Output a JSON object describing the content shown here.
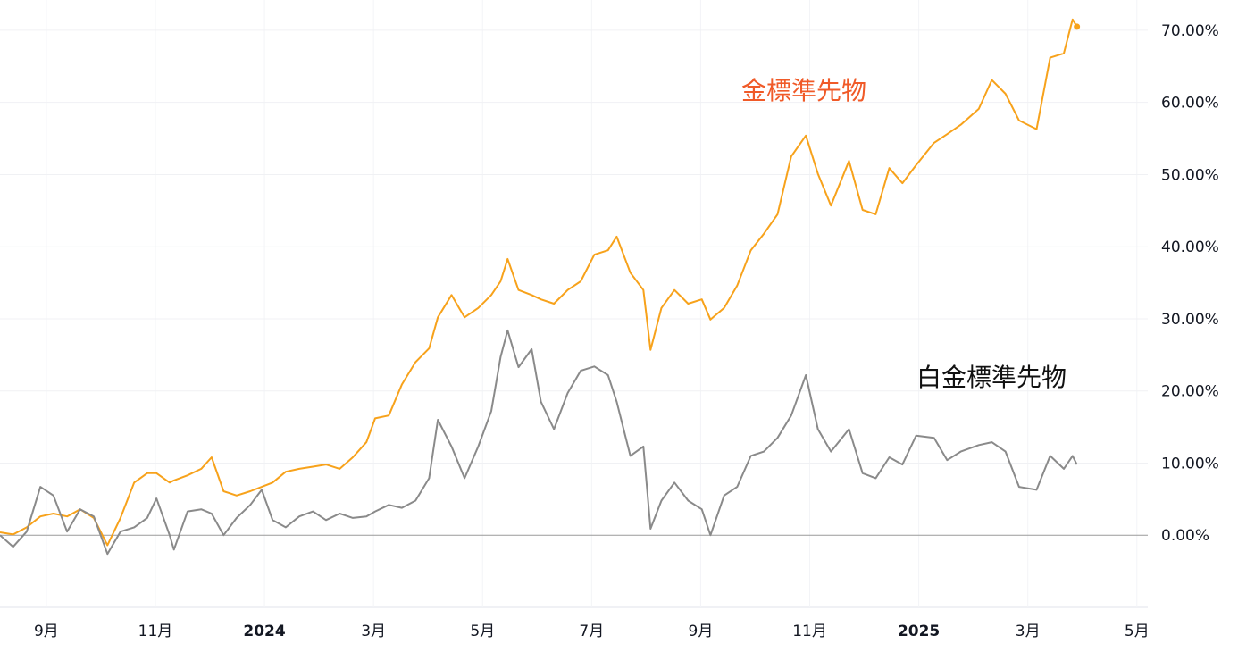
{
  "chart_data": {
    "type": "line",
    "x": [
      8.15,
      8.39,
      8.64,
      8.89,
      9.13,
      9.38,
      9.62,
      9.87,
      10.12,
      10.36,
      10.61,
      10.85,
      11.02,
      11.26,
      11.34,
      11.59,
      11.84,
      12.03,
      12.25,
      12.49,
      12.74,
      12.95,
      13.15,
      13.39,
      13.64,
      13.89,
      14.13,
      14.38,
      14.62,
      14.87,
      15.03,
      15.28,
      15.52,
      15.77,
      16.02,
      16.18,
      16.43,
      16.67,
      16.92,
      17.16,
      17.33,
      17.46,
      17.66,
      17.9,
      18.07,
      18.31,
      18.56,
      18.8,
      19.05,
      19.3,
      19.46,
      19.71,
      19.95,
      20.08,
      20.28,
      20.52,
      20.77,
      21.02,
      21.18,
      21.43,
      21.67,
      21.92,
      22.16,
      22.41,
      22.66,
      22.93,
      23.15,
      23.39,
      23.72,
      23.97,
      24.21,
      24.46,
      24.7,
      24.95,
      25.28,
      25.52,
      25.77,
      26.1,
      26.34,
      26.59,
      26.84,
      27.16,
      27.41,
      27.66,
      27.82,
      27.9
    ],
    "series": [
      {
        "name": "金標準先物",
        "color": "#f7a21b",
        "label_color": "#f05a28",
        "values": [
          0.4,
          0.1,
          1.1,
          2.6,
          3.0,
          2.6,
          3.6,
          2.4,
          -1.4,
          2.4,
          7.3,
          8.6,
          8.6,
          7.3,
          7.6,
          8.3,
          9.2,
          10.8,
          6.1,
          5.5,
          6.1,
          6.7,
          7.3,
          8.8,
          9.2,
          9.5,
          9.8,
          9.2,
          10.8,
          12.9,
          16.2,
          16.6,
          20.9,
          24.0,
          25.9,
          30.2,
          33.3,
          30.2,
          31.5,
          33.3,
          35.2,
          38.3,
          34.0,
          33.3,
          32.7,
          32.1,
          34.0,
          35.2,
          38.9,
          39.5,
          41.4,
          36.4,
          34.0,
          25.7,
          31.5,
          34.0,
          32.1,
          32.7,
          29.9,
          31.5,
          34.6,
          39.5,
          41.8,
          44.5,
          52.5,
          55.4,
          50.1,
          45.7,
          51.9,
          45.1,
          44.5,
          50.9,
          48.8,
          51.3,
          54.4,
          55.6,
          56.9,
          59.1,
          63.1,
          61.2,
          57.5,
          56.3,
          66.2,
          66.8,
          71.5,
          70.5
        ]
      },
      {
        "name": "白金標準先物",
        "color": "#8a8a8a",
        "label_color": "#111111",
        "values": [
          0,
          -1.6,
          0.5,
          6.7,
          5.5,
          0.5,
          3.6,
          2.6,
          -2.6,
          0.5,
          1.1,
          2.4,
          5.1,
          0,
          -2.0,
          3.3,
          3.6,
          3.0,
          0,
          2.4,
          4.2,
          6.3,
          2.1,
          1.1,
          2.6,
          3.3,
          2.1,
          3.0,
          2.4,
          2.6,
          3.3,
          4.2,
          3.8,
          4.8,
          7.9,
          16.0,
          12.3,
          7.9,
          12.3,
          17.2,
          24.7,
          28.4,
          23.3,
          25.8,
          18.5,
          14.7,
          19.7,
          22.8,
          23.4,
          22.2,
          18.5,
          11.0,
          12.3,
          0.9,
          4.8,
          7.3,
          4.8,
          3.6,
          0,
          5.5,
          6.7,
          11.0,
          11.6,
          13.5,
          16.6,
          22.2,
          14.7,
          11.6,
          14.7,
          8.6,
          7.9,
          10.8,
          9.8,
          13.8,
          13.5,
          10.4,
          11.6,
          12.5,
          12.9,
          11.6,
          6.7,
          6.3,
          11.0,
          9.2,
          11.0,
          9.8
        ]
      }
    ],
    "xlim": [
      8.15,
      29.2
    ],
    "xticks": [
      {
        "value": 9,
        "label": "9月"
      },
      {
        "value": 11,
        "label": "11月"
      },
      {
        "value": 13,
        "label": "2024"
      },
      {
        "value": 15,
        "label": "3月"
      },
      {
        "value": 17,
        "label": "5月"
      },
      {
        "value": 19,
        "label": "7月"
      },
      {
        "value": 21,
        "label": "9月"
      },
      {
        "value": 23,
        "label": "11月"
      },
      {
        "value": 25,
        "label": "2025"
      },
      {
        "value": 27,
        "label": "3月"
      },
      {
        "value": 29,
        "label": "5月"
      }
    ],
    "ylim": [
      -10,
      74.2
    ],
    "yticks": [
      {
        "value": 0,
        "label": "0.00%"
      },
      {
        "value": 10,
        "label": "10.00%"
      },
      {
        "value": 20,
        "label": "20.00%"
      },
      {
        "value": 30,
        "label": "30.00%"
      },
      {
        "value": 40,
        "label": "40.00%"
      },
      {
        "value": 50,
        "label": "50.00%"
      },
      {
        "value": 60,
        "label": "60.00%"
      },
      {
        "value": 70,
        "label": "70.00%"
      }
    ],
    "grid": true
  }
}
